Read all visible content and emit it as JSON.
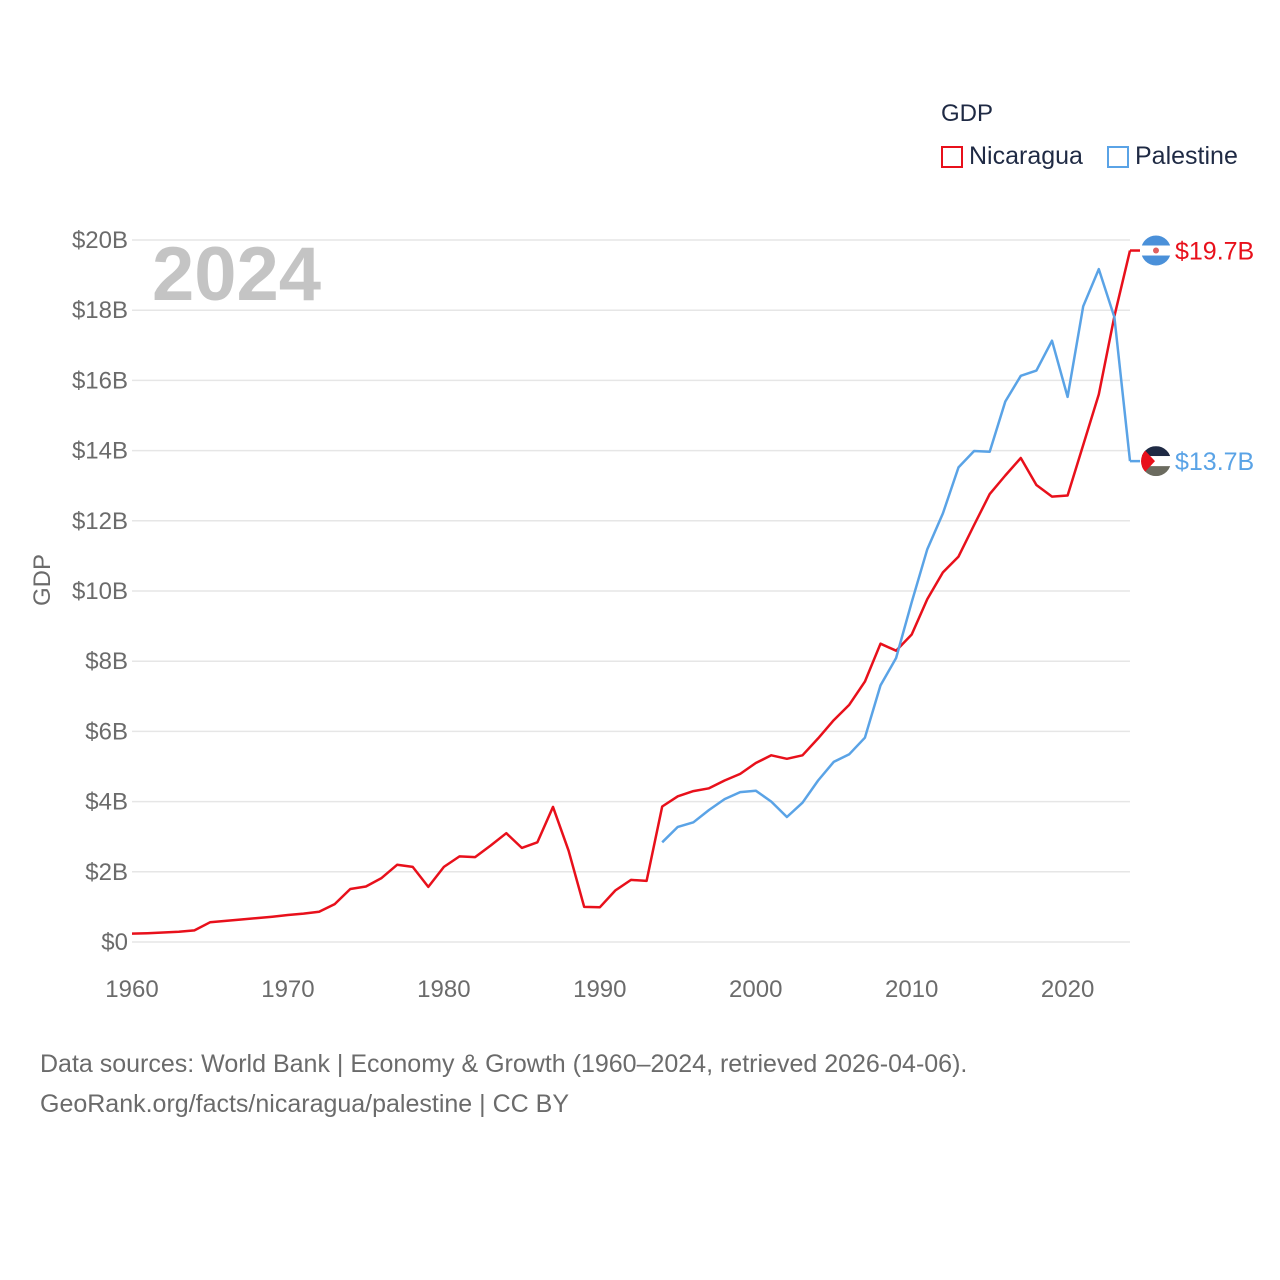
{
  "chart_data": {
    "type": "line",
    "year_label": "2024",
    "ylabel": "GDP",
    "xlabel": "",
    "xlim": [
      1960,
      2024
    ],
    "ylim": [
      0,
      20
    ],
    "x_ticks": [
      "1960",
      "1970",
      "1980",
      "1990",
      "2000",
      "2010",
      "2020"
    ],
    "x_tick_values": [
      1960,
      1970,
      1980,
      1990,
      2000,
      2010,
      2020
    ],
    "y_ticks": [
      "$0",
      "$2B",
      "$4B",
      "$6B",
      "$8B",
      "$10B",
      "$12B",
      "$14B",
      "$16B",
      "$18B",
      "$20B"
    ],
    "y_tick_values": [
      0,
      2,
      4,
      6,
      8,
      10,
      12,
      14,
      16,
      18,
      20
    ],
    "legend_title": "GDP",
    "series": [
      {
        "name": "Nicaragua",
        "color": "#e8101b",
        "end_label": "$19.7B",
        "flag": "nicaragua-flag-icon",
        "x": [
          1960,
          1961,
          1962,
          1963,
          1964,
          1965,
          1966,
          1967,
          1968,
          1969,
          1970,
          1971,
          1972,
          1973,
          1974,
          1975,
          1976,
          1977,
          1978,
          1979,
          1980,
          1981,
          1982,
          1983,
          1984,
          1985,
          1986,
          1987,
          1988,
          1989,
          1990,
          1991,
          1992,
          1993,
          1994,
          1995,
          1996,
          1997,
          1998,
          1999,
          2000,
          2001,
          2002,
          2003,
          2004,
          2005,
          2006,
          2007,
          2008,
          2009,
          2010,
          2011,
          2012,
          2013,
          2014,
          2015,
          2016,
          2017,
          2018,
          2019,
          2020,
          2021,
          2022,
          2023,
          2024
        ],
        "values": [
          0.24,
          0.25,
          0.27,
          0.29,
          0.33,
          0.56,
          0.6,
          0.64,
          0.68,
          0.72,
          0.77,
          0.81,
          0.86,
          1.08,
          1.51,
          1.58,
          1.82,
          2.2,
          2.14,
          1.57,
          2.14,
          2.44,
          2.42,
          2.75,
          3.1,
          2.68,
          2.84,
          3.85,
          2.6,
          1.0,
          0.99,
          1.47,
          1.77,
          1.74,
          3.86,
          4.15,
          4.3,
          4.38,
          4.6,
          4.79,
          5.1,
          5.32,
          5.22,
          5.32,
          5.8,
          6.32,
          6.76,
          7.42,
          8.5,
          8.3,
          8.76,
          9.77,
          10.53,
          10.98,
          11.88,
          12.76,
          13.29,
          13.79,
          13.02,
          12.69,
          12.72,
          14.16,
          15.6,
          17.83,
          19.7
        ]
      },
      {
        "name": "Palestine",
        "color": "#5aa3e6",
        "end_label": "$13.7B",
        "flag": "palestine-flag-icon",
        "x": [
          1994,
          1995,
          1996,
          1997,
          1998,
          1999,
          2000,
          2001,
          2002,
          2003,
          2004,
          2005,
          2006,
          2007,
          2008,
          2009,
          2010,
          2011,
          2012,
          2013,
          2014,
          2015,
          2016,
          2017,
          2018,
          2019,
          2020,
          2021,
          2022,
          2023,
          2024
        ],
        "values": [
          2.84,
          3.28,
          3.41,
          3.76,
          4.07,
          4.27,
          4.31,
          4.0,
          3.56,
          3.97,
          4.6,
          5.13,
          5.35,
          5.82,
          7.31,
          8.09,
          9.68,
          11.19,
          12.21,
          13.52,
          13.99,
          13.97,
          15.4,
          16.13,
          16.28,
          17.13,
          15.53,
          18.11,
          19.17,
          17.8,
          13.7
        ]
      }
    ]
  },
  "source_line1": "Data sources: World Bank | Economy & Growth (1960–2024, retrieved 2026-04-06).",
  "source_line2": "GeoRank.org/facts/nicaragua/palestine | CC BY"
}
